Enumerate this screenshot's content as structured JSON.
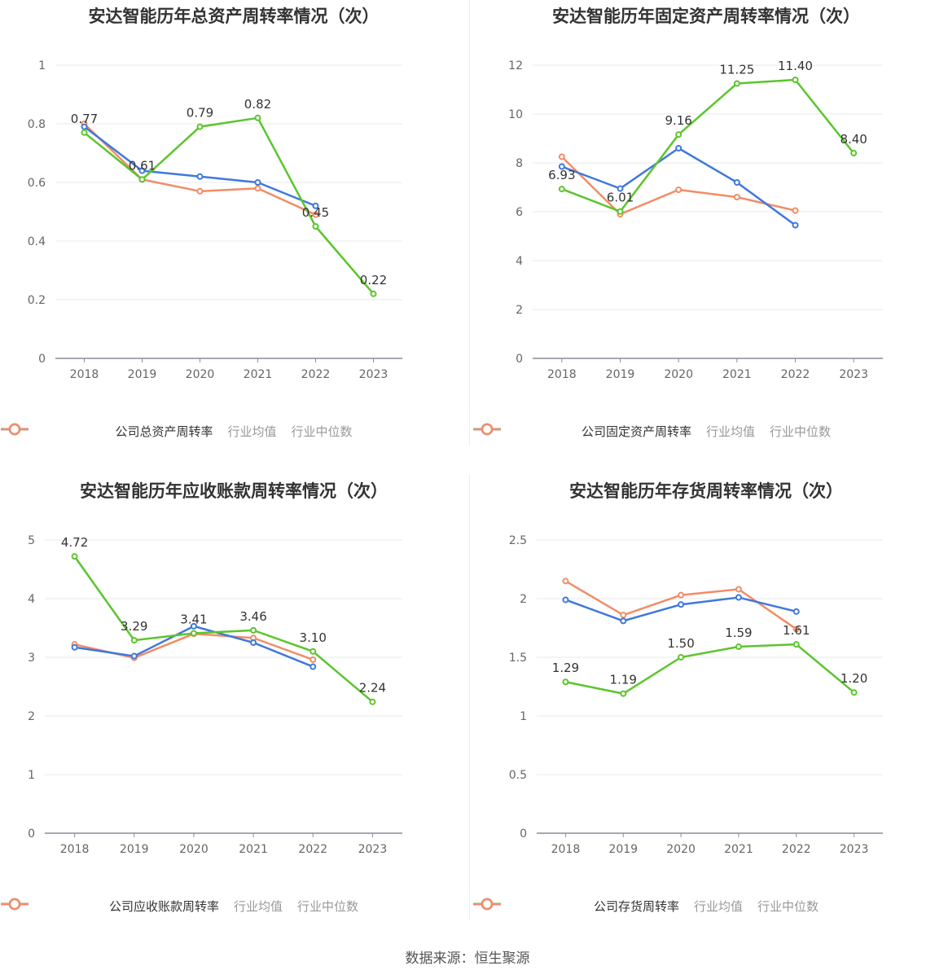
{
  "source": "数据来源：恒生聚源",
  "colors": {
    "company": "#5cc52c",
    "mean": "#3f78dc",
    "median": "#f28c66"
  },
  "chart_data": [
    {
      "type": "line",
      "title": "安达智能历年总资产周转率情况（次）",
      "categories": [
        "2018",
        "2019",
        "2020",
        "2021",
        "2022",
        "2023"
      ],
      "ylim": [
        0,
        1
      ],
      "yticks": [
        "0",
        "0.2",
        "0.4",
        "0.6",
        "0.8",
        "1"
      ],
      "ytick_values": [
        0,
        0.2,
        0.4,
        0.6,
        0.8,
        1
      ],
      "series": [
        {
          "name": "公司总资产周转率",
          "key": "company",
          "values": [
            0.77,
            0.61,
            0.79,
            0.82,
            0.45,
            0.22
          ],
          "labels": [
            "0.77",
            "0.61",
            "0.79",
            "0.82",
            "0.45",
            "0.22"
          ]
        },
        {
          "name": "行业均值",
          "key": "mean",
          "values": [
            0.79,
            0.64,
            0.62,
            0.6,
            0.52,
            null
          ]
        },
        {
          "name": "行业中位数",
          "key": "median",
          "values": [
            0.8,
            0.61,
            0.57,
            0.58,
            0.49,
            null
          ]
        }
      ]
    },
    {
      "type": "line",
      "title": "安达智能历年固定资产周转率情况（次）",
      "categories": [
        "2018",
        "2019",
        "2020",
        "2021",
        "2022",
        "2023"
      ],
      "ylim": [
        0,
        12
      ],
      "yticks": [
        "0",
        "2",
        "4",
        "6",
        "8",
        "10",
        "12"
      ],
      "ytick_values": [
        0,
        2,
        4,
        6,
        8,
        10,
        12
      ],
      "series": [
        {
          "name": "公司固定资产周转率",
          "key": "company",
          "values": [
            6.93,
            6.01,
            9.16,
            11.25,
            11.4,
            8.4
          ],
          "labels": [
            "6.93",
            "6.01",
            "9.16",
            "11.25",
            "11.40",
            "8.40"
          ]
        },
        {
          "name": "行业均值",
          "key": "mean",
          "values": [
            7.85,
            6.95,
            8.6,
            7.2,
            5.45,
            null
          ]
        },
        {
          "name": "行业中位数",
          "key": "median",
          "values": [
            8.25,
            5.9,
            6.9,
            6.6,
            6.05,
            null
          ]
        }
      ]
    },
    {
      "type": "line",
      "title": "安达智能历年应收账款周转率情况（次）",
      "categories": [
        "2018",
        "2019",
        "2020",
        "2021",
        "2022",
        "2023"
      ],
      "ylim": [
        0,
        5
      ],
      "yticks": [
        "0",
        "1",
        "2",
        "3",
        "4",
        "5"
      ],
      "ytick_values": [
        0,
        1,
        2,
        3,
        4,
        5
      ],
      "series": [
        {
          "name": "公司应收账款周转率",
          "key": "company",
          "values": [
            4.72,
            3.29,
            3.41,
            3.46,
            3.1,
            2.24
          ],
          "labels": [
            "4.72",
            "3.29",
            "3.41",
            "3.46",
            "3.10",
            "2.24"
          ]
        },
        {
          "name": "行业均值",
          "key": "mean",
          "values": [
            3.17,
            3.02,
            3.53,
            3.25,
            2.84,
            null
          ]
        },
        {
          "name": "行业中位数",
          "key": "median",
          "values": [
            3.22,
            2.99,
            3.4,
            3.33,
            2.96,
            null
          ]
        }
      ]
    },
    {
      "type": "line",
      "title": "安达智能历年存货周转率情况（次）",
      "categories": [
        "2018",
        "2019",
        "2020",
        "2021",
        "2022",
        "2023"
      ],
      "ylim": [
        0,
        2.5
      ],
      "yticks": [
        "0",
        "0.5",
        "1",
        "1.5",
        "2",
        "2.5"
      ],
      "ytick_values": [
        0,
        0.5,
        1,
        1.5,
        2,
        2.5
      ],
      "series": [
        {
          "name": "公司存货周转率",
          "key": "company",
          "values": [
            1.29,
            1.19,
            1.5,
            1.59,
            1.61,
            1.2
          ],
          "labels": [
            "1.29",
            "1.19",
            "1.50",
            "1.59",
            "1.61",
            "1.20"
          ]
        },
        {
          "name": "行业均值",
          "key": "mean",
          "values": [
            1.99,
            1.81,
            1.95,
            2.01,
            1.89,
            null
          ]
        },
        {
          "name": "行业中位数",
          "key": "median",
          "values": [
            2.15,
            1.86,
            2.03,
            2.08,
            1.74,
            null
          ]
        }
      ]
    }
  ]
}
